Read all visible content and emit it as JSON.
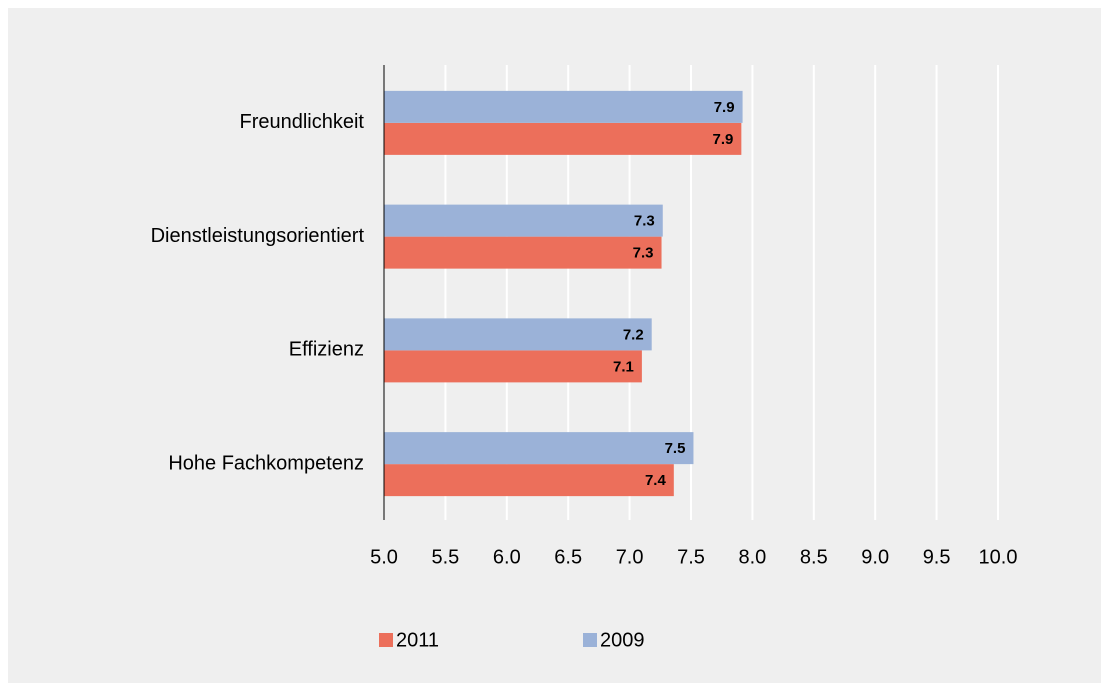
{
  "chart_data": {
    "type": "hbar",
    "categories": [
      "Freundlichkeit",
      "Dienstleistungsorientiert",
      "Effizienz",
      "Hohe Fachkompetenz"
    ],
    "series": [
      {
        "name": "2011",
        "color": "#ec6f5b",
        "values": [
          7.91,
          7.26,
          7.1,
          7.36
        ],
        "value_labels": [
          "7.9",
          "7.3",
          "7.1",
          "7.4"
        ]
      },
      {
        "name": "2009",
        "color": "#9bb2d8",
        "values": [
          7.92,
          7.27,
          7.18,
          7.52
        ],
        "value_labels": [
          "7.9",
          "7.3",
          "7.2",
          "7.5"
        ]
      }
    ],
    "xlim": [
      5,
      10
    ],
    "xticks": [
      {
        "value": 5,
        "label": "5.0"
      },
      5.5,
      {
        "value": 6,
        "label": "6.0"
      },
      6.5,
      {
        "value": 7,
        "label": "7.0"
      },
      7.5,
      {
        "value": 8,
        "label": "8.0"
      },
      8.5,
      {
        "value": 9,
        "label": "9.0"
      },
      9.5,
      {
        "value": 10,
        "label": "10.0"
      }
    ],
    "grid": true,
    "legend": "bottom"
  }
}
